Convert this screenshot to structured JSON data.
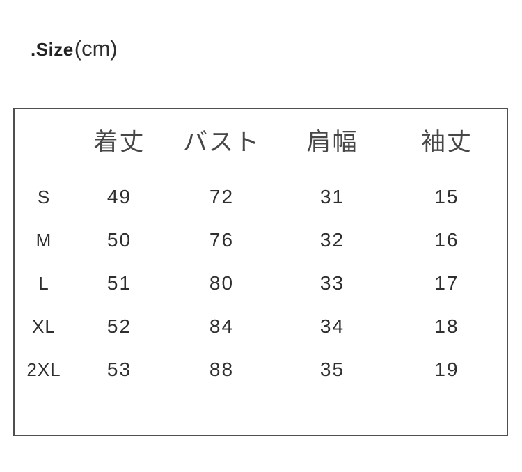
{
  "title": {
    "prefix": ".Size",
    "unit": "(cm)"
  },
  "colors": {
    "background": "#ffffff",
    "text": "#3a3a3a",
    "border": "#4f4f4f"
  },
  "chart_data": {
    "type": "table",
    "title": ".Size(cm)",
    "unit": "cm",
    "columns": [
      "着丈",
      "バスト",
      "肩幅",
      "袖丈"
    ],
    "rows": [
      {
        "size": "S",
        "values": [
          "49",
          "72",
          "31",
          "15"
        ]
      },
      {
        "size": "M",
        "values": [
          "50",
          "76",
          "32",
          "16"
        ]
      },
      {
        "size": "L",
        "values": [
          "51",
          "80",
          "33",
          "17"
        ]
      },
      {
        "size": "XL",
        "values": [
          "52",
          "84",
          "34",
          "18"
        ]
      },
      {
        "size": "2XL",
        "values": [
          "53",
          "88",
          "35",
          "19"
        ]
      }
    ]
  }
}
